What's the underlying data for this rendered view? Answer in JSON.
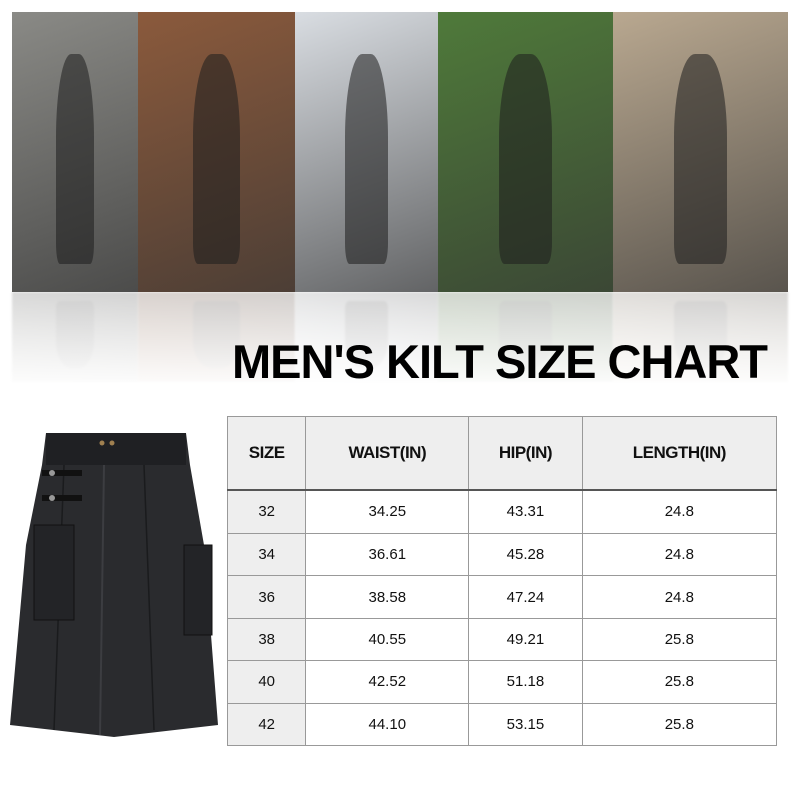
{
  "title": "MEN'S KILT SIZE CHART",
  "photos": [
    {
      "name": "man-running-photo",
      "color": "#8a8a86"
    },
    {
      "name": "man-shooting-photo",
      "color": "#8b5a3c"
    },
    {
      "name": "man-ice-skating-photo",
      "color": "#d9dde2"
    },
    {
      "name": "men-wrestling-photo",
      "color": "#4f7a3a"
    },
    {
      "name": "man-shirtless-photo",
      "color": "#b9a890"
    }
  ],
  "table": {
    "headers": [
      "SIZE",
      "WAIST(IN)",
      "HIP(IN)",
      "LENGTH(IN)"
    ],
    "rows": [
      [
        "32",
        "34.25",
        "43.31",
        "24.8"
      ],
      [
        "34",
        "36.61",
        "45.28",
        "24.8"
      ],
      [
        "36",
        "38.58",
        "47.24",
        "24.8"
      ],
      [
        "38",
        "40.55",
        "49.21",
        "25.8"
      ],
      [
        "40",
        "42.52",
        "51.18",
        "25.8"
      ],
      [
        "42",
        "44.10",
        "53.15",
        "25.8"
      ]
    ]
  }
}
